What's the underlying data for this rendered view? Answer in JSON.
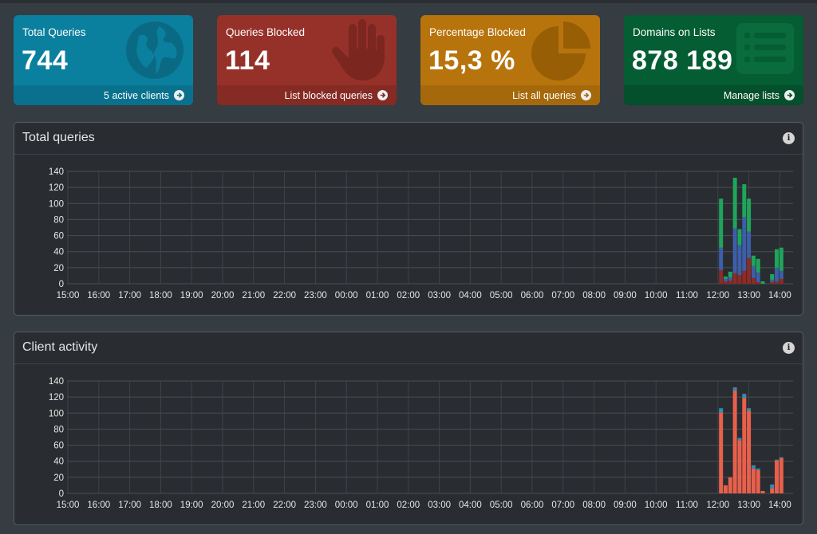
{
  "stats": [
    {
      "title": "Total Queries",
      "value": "744",
      "footer": "5 active clients",
      "bg": "#0b7f9e",
      "footer_bg": "#09718d",
      "icon_color": "#0a6a84",
      "icon": "globe-icon"
    },
    {
      "title": "Queries Blocked",
      "value": "114",
      "footer": "List blocked queries",
      "bg": "#96312a",
      "footer_bg": "#862a24",
      "icon_color": "#7c2620",
      "icon": "hand-icon"
    },
    {
      "title": "Percentage Blocked",
      "value": "15,3 %",
      "footer": "List all queries",
      "bg": "#b8740c",
      "footer_bg": "#a5680a",
      "icon_color": "#985e06",
      "icon": "pie-chart-icon"
    },
    {
      "title": "Domains on Lists",
      "value": "878 189",
      "footer": "Manage lists",
      "bg": "#045d33",
      "footer_bg": "#04502c",
      "icon_color": "#0a6b3c",
      "icon": "list-icon"
    }
  ],
  "panels": {
    "total_queries": {
      "title": "Total queries"
    },
    "client_activity": {
      "title": "Client activity"
    }
  },
  "chart_data": [
    {
      "type": "bar",
      "title": "Total queries",
      "stacked": true,
      "ylim": [
        0,
        140
      ],
      "yticks": [
        0,
        20,
        40,
        60,
        80,
        100,
        120,
        140
      ],
      "xticks": [
        "15:00",
        "16:00",
        "17:00",
        "18:00",
        "19:00",
        "20:00",
        "21:00",
        "22:00",
        "23:00",
        "00:00",
        "01:00",
        "02:00",
        "03:00",
        "04:00",
        "05:00",
        "06:00",
        "07:00",
        "08:00",
        "09:00",
        "10:00",
        "11:00",
        "12:00",
        "13:00",
        "14:00"
      ],
      "grid": true,
      "colors": [
        "#8f2a26",
        "#3d5ea8",
        "#1fa55b"
      ],
      "bars": [
        {
          "x": 12.1,
          "values": [
            17,
            28,
            61
          ]
        },
        {
          "x": 12.25,
          "values": [
            3,
            3,
            3
          ]
        },
        {
          "x": 12.4,
          "values": [
            4,
            4,
            7
          ]
        },
        {
          "x": 12.55,
          "values": [
            13,
            56,
            63
          ]
        },
        {
          "x": 12.7,
          "values": [
            11,
            37,
            20
          ]
        },
        {
          "x": 12.85,
          "values": [
            16,
            67,
            41
          ]
        },
        {
          "x": 13.0,
          "values": [
            32,
            33,
            41
          ]
        },
        {
          "x": 13.15,
          "values": [
            7,
            15,
            13
          ]
        },
        {
          "x": 13.3,
          "values": [
            2,
            12,
            17
          ]
        },
        {
          "x": 13.45,
          "values": [
            0,
            0,
            3
          ]
        },
        {
          "x": 13.75,
          "values": [
            2,
            3,
            7
          ]
        },
        {
          "x": 13.9,
          "values": [
            3,
            17,
            23
          ]
        },
        {
          "x": 14.05,
          "values": [
            6,
            10,
            29
          ]
        }
      ]
    },
    {
      "type": "bar",
      "title": "Client activity",
      "stacked": true,
      "ylim": [
        0,
        140
      ],
      "yticks": [
        0,
        20,
        40,
        60,
        80,
        100,
        120,
        140
      ],
      "xticks": [
        "15:00",
        "16:00",
        "17:00",
        "18:00",
        "19:00",
        "20:00",
        "21:00",
        "22:00",
        "23:00",
        "00:00",
        "01:00",
        "02:00",
        "03:00",
        "04:00",
        "05:00",
        "06:00",
        "07:00",
        "08:00",
        "09:00",
        "10:00",
        "11:00",
        "12:00",
        "13:00",
        "14:00"
      ],
      "grid": true,
      "colors": [
        "#e8604c",
        "#2d8fb5",
        "#6a7fa8"
      ],
      "bars": [
        {
          "x": 12.1,
          "values": [
            101,
            5,
            0
          ]
        },
        {
          "x": 12.25,
          "values": [
            10,
            0,
            0
          ]
        },
        {
          "x": 12.4,
          "values": [
            20,
            0,
            0
          ]
        },
        {
          "x": 12.55,
          "values": [
            128,
            3,
            1
          ]
        },
        {
          "x": 12.7,
          "values": [
            66,
            3,
            0
          ]
        },
        {
          "x": 12.85,
          "values": [
            119,
            4,
            1
          ]
        },
        {
          "x": 13.0,
          "values": [
            103,
            3,
            0
          ]
        },
        {
          "x": 13.15,
          "values": [
            31,
            3,
            1
          ]
        },
        {
          "x": 13.3,
          "values": [
            29,
            2,
            0
          ]
        },
        {
          "x": 13.45,
          "values": [
            3,
            0,
            0
          ]
        },
        {
          "x": 13.75,
          "values": [
            6,
            4,
            1
          ]
        },
        {
          "x": 13.9,
          "values": [
            41,
            1,
            0
          ]
        },
        {
          "x": 14.05,
          "values": [
            44,
            1,
            0
          ]
        }
      ]
    }
  ]
}
